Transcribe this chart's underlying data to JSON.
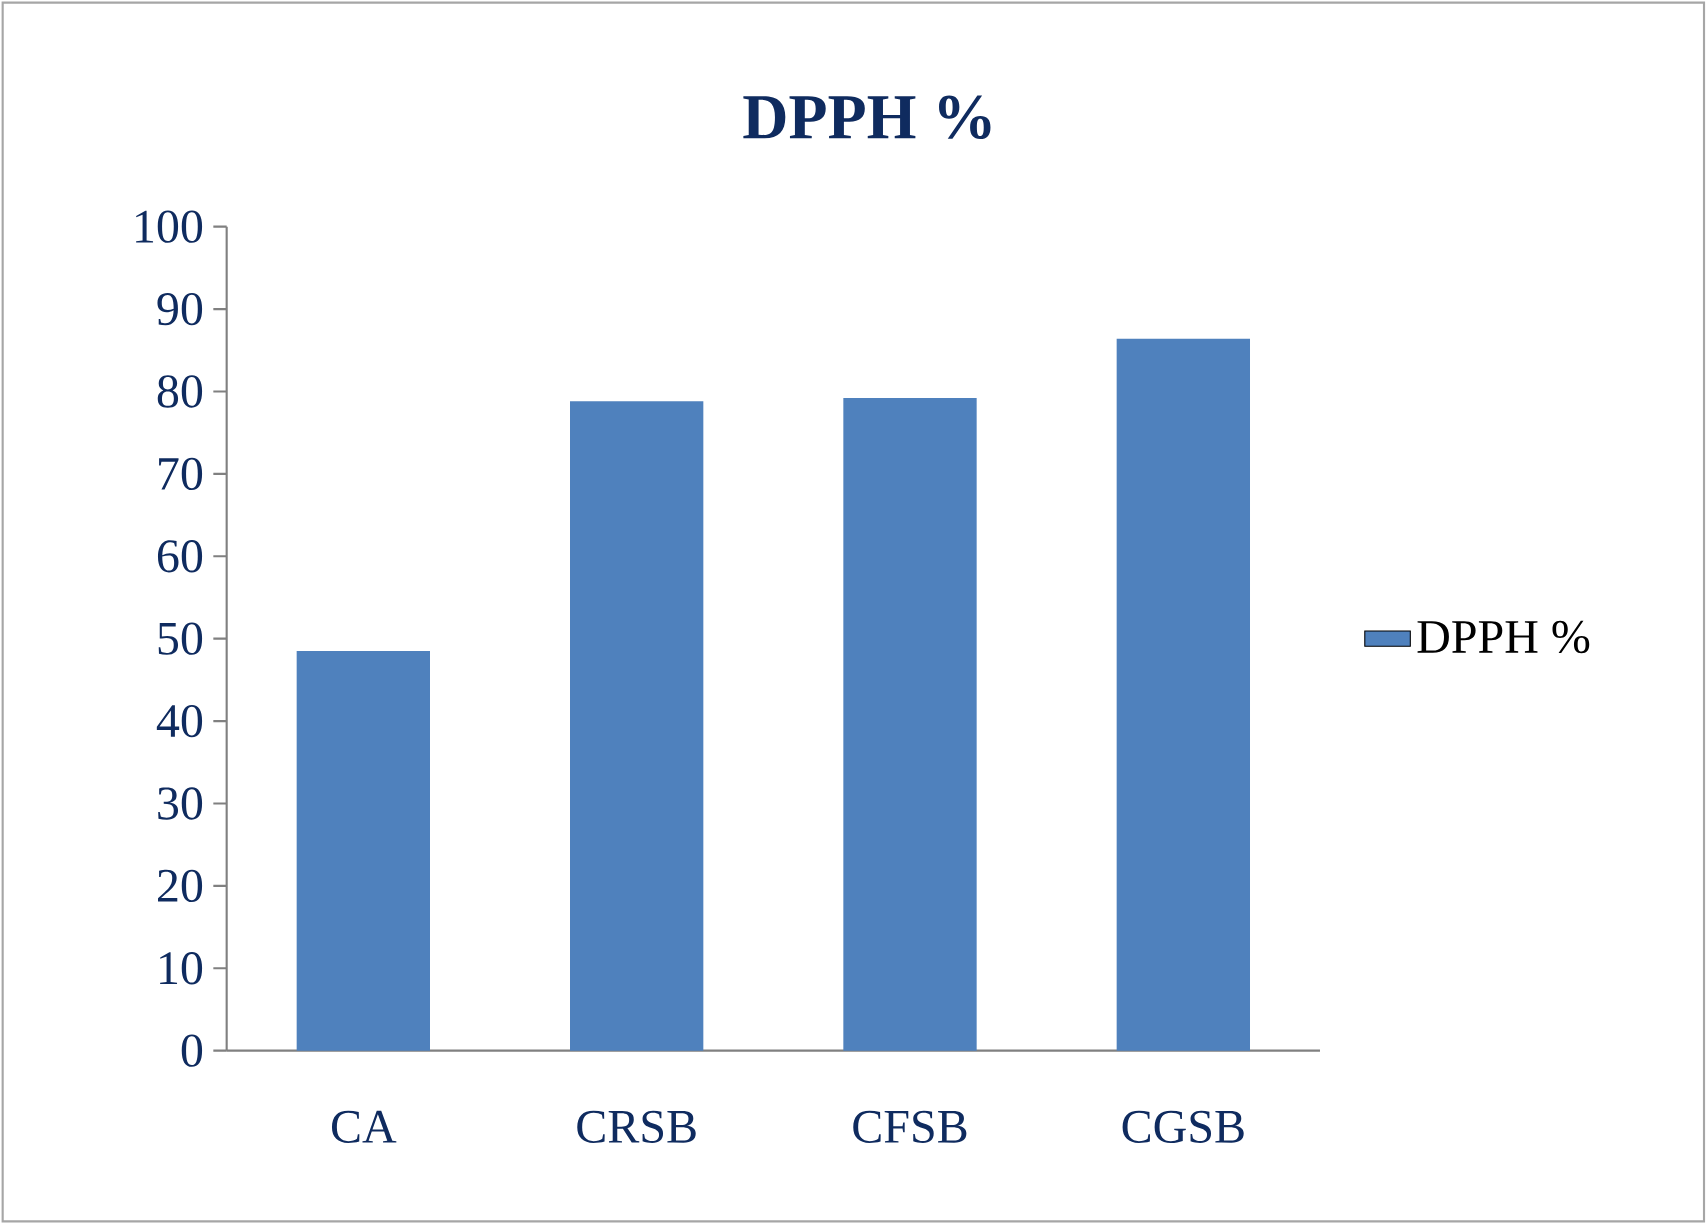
{
  "chart_data": {
    "type": "bar",
    "title": "DPPH %",
    "categories": [
      "CA",
      "CRSB",
      "CFSB",
      "CGSB"
    ],
    "series": [
      {
        "name": "DPPH %",
        "color": "#4f81bd",
        "values": [
          48.5,
          78.8,
          79.2,
          86.4
        ]
      }
    ],
    "ylim": [
      0,
      100
    ],
    "yticks": [
      0,
      10,
      20,
      30,
      40,
      50,
      60,
      70,
      80,
      90,
      100
    ],
    "grid": false,
    "legend": "right"
  }
}
